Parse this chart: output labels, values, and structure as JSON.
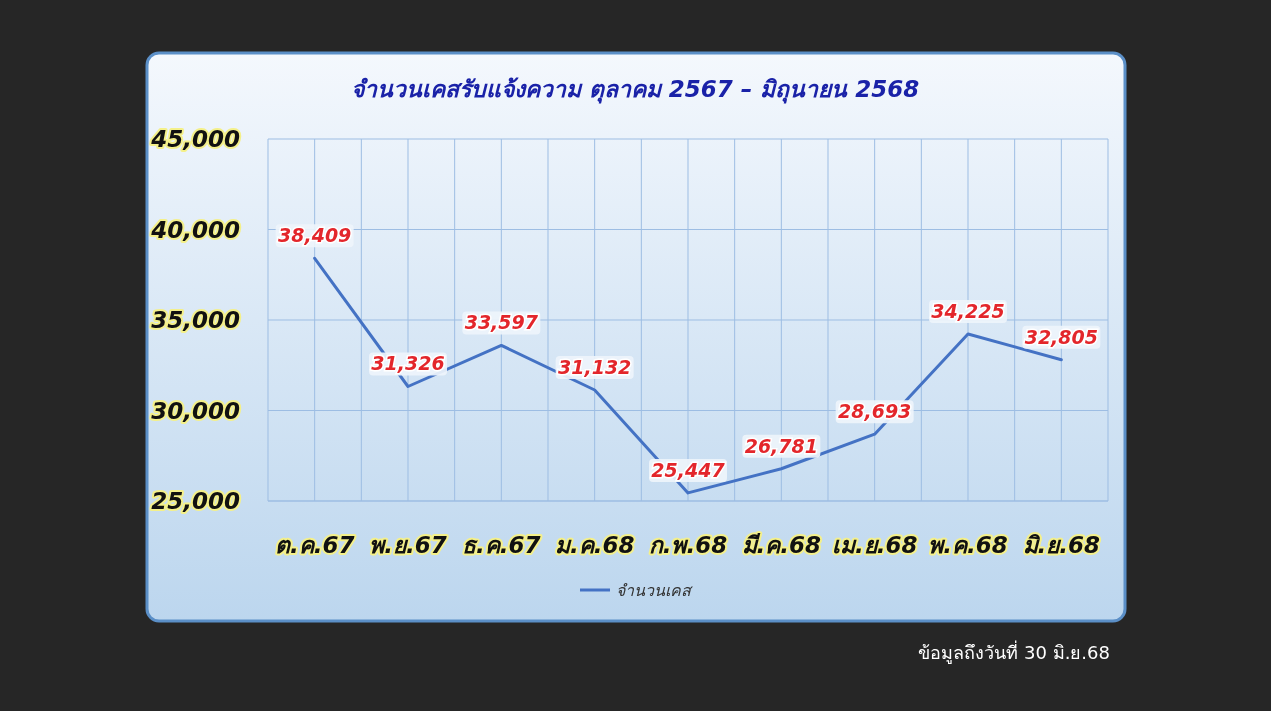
{
  "chart_data": {
    "type": "line",
    "title": "จำนวนเคสรับแจ้งความ  ตุลาคม 2567 – มิถุนายน 2568",
    "categories": [
      "ต.ค.67",
      "พ.ย.67",
      "ธ.ค.67",
      "ม.ค.68",
      "ก.พ.68",
      "มี.ค.68",
      "เม.ย.68",
      "พ.ค.68",
      "มิ.ย.68"
    ],
    "series": [
      {
        "name": "จำนวนเคส",
        "color": "#4472c4",
        "values": [
          38409,
          31326,
          33597,
          31132,
          25447,
          26781,
          28693,
          34225,
          32805
        ],
        "value_labels": [
          "38,409",
          "31,326",
          "33,597",
          "31,132",
          "25,447",
          "26,781",
          "28,693",
          "34,225",
          "32,805"
        ]
      }
    ],
    "ylim": [
      25000,
      45000
    ],
    "yticks": [
      {
        "value": 25000,
        "label": "25,000"
      },
      {
        "value": 30000,
        "label": "30,000"
      },
      {
        "value": 35000,
        "label": "35,000"
      },
      {
        "value": 40000,
        "label": "40,000"
      },
      {
        "value": 45000,
        "label": "45,000"
      }
    ],
    "grid": true,
    "legend": "bottom",
    "annotations": [
      "ข้อมูลถึงวันที่ 30 มิ.ย.68"
    ]
  }
}
